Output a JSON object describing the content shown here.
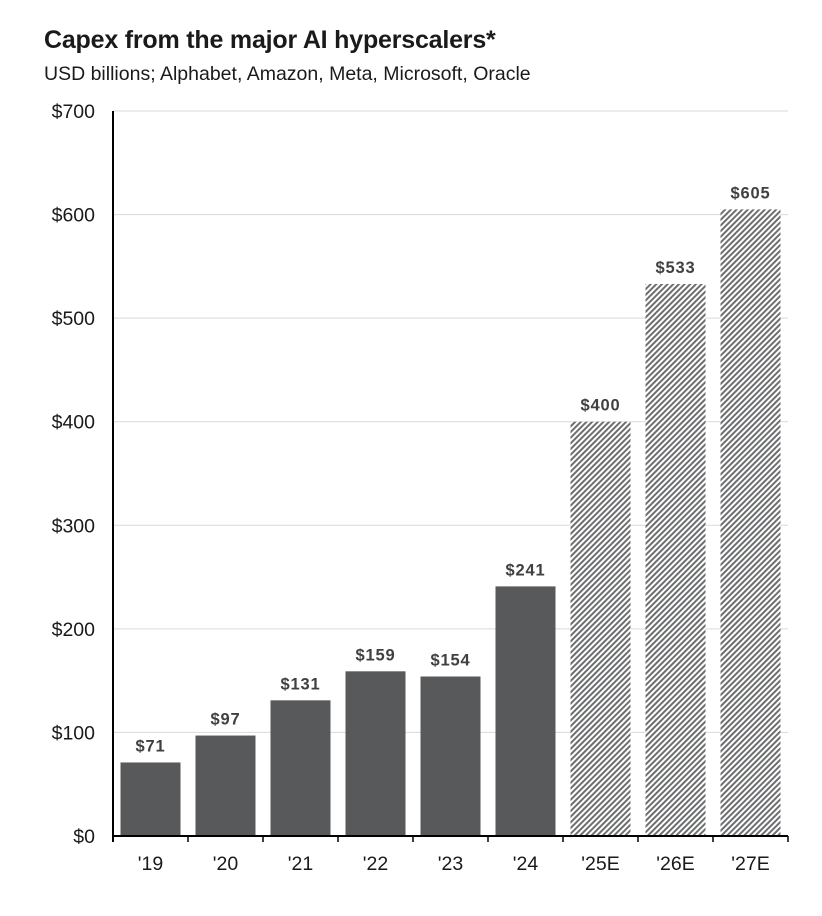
{
  "chart_data": {
    "type": "bar",
    "title": "Capex from the major AI hyperscalers*",
    "subtitle": "USD billions; Alphabet, Amazon, Meta, Microsoft, Oracle",
    "xlabel": "",
    "ylabel": "",
    "ylim": [
      0,
      700
    ],
    "yticks": [
      0,
      100,
      200,
      300,
      400,
      500,
      600,
      700
    ],
    "ytick_labels": [
      "$0",
      "$100",
      "$200",
      "$300",
      "$400",
      "$500",
      "$600",
      "$700"
    ],
    "grid": true,
    "categories": [
      "'19",
      "'20",
      "'21",
      "'22",
      "'23",
      "'24",
      "'25E",
      "'26E",
      "'27E"
    ],
    "values": [
      71,
      97,
      131,
      159,
      154,
      241,
      400,
      533,
      605
    ],
    "data_labels": [
      "$71",
      "$97",
      "$131",
      "$159",
      "$154",
      "$241",
      "$400",
      "$533",
      "$605"
    ],
    "estimated": [
      false,
      false,
      false,
      false,
      false,
      false,
      true,
      true,
      true
    ],
    "colors": {
      "actual": "#58595b",
      "estimate_hatch": "#6d6e70",
      "grid": "#d9d9d9",
      "axis": "#000000",
      "label": "#404040"
    }
  }
}
